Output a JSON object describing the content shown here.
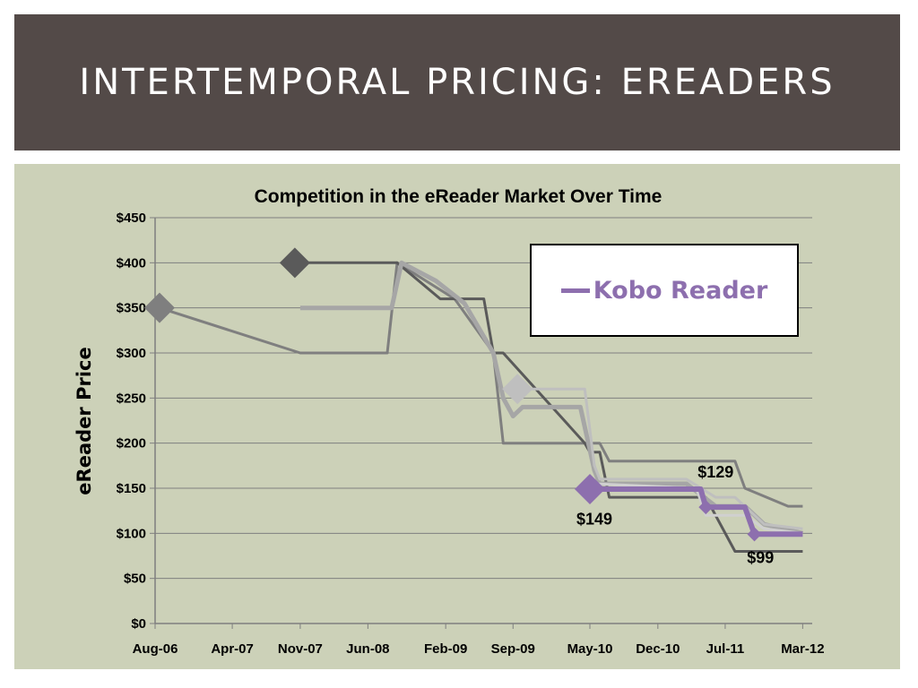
{
  "slide": {
    "title": "INTERTEMPORAL PRICING: EREADERS"
  },
  "chart_data": {
    "type": "line",
    "title": "Competition in the eReader Market Over Time",
    "xlabel": "",
    "ylabel": "eReader Price",
    "ylim": [
      0,
      450
    ],
    "yticks": [
      0,
      50,
      100,
      150,
      200,
      250,
      300,
      350,
      400,
      450
    ],
    "ytick_labels": [
      "$0",
      "$50",
      "$100",
      "$150",
      "$200",
      "$250",
      "$300",
      "$350",
      "$400",
      "$450"
    ],
    "xlim": [
      "2006-08-01",
      "2012-03-31"
    ],
    "xticks": [
      "2006-08-01",
      "2007-04-01",
      "2007-11-01",
      "2008-06-01",
      "2009-02-01",
      "2009-09-01",
      "2010-05-01",
      "2010-12-01",
      "2011-07-01",
      "2012-03-01"
    ],
    "xtick_labels": [
      "Aug-06",
      "Apr-07",
      "Nov-07",
      "Jun-08",
      "Feb-09",
      "Sep-09",
      "May-10",
      "Dec-10",
      "Jul-11",
      "Mar-12"
    ],
    "grid": true,
    "legend": {
      "placement": "upper-right",
      "entries": [
        "Kobo Reader"
      ]
    },
    "legend_color": "#8d6fae",
    "annotations": [
      {
        "text": "$149",
        "x": "2010-05-15",
        "y": 110
      },
      {
        "text": "$129",
        "x": "2011-06-01",
        "y": 162
      },
      {
        "text": "$99",
        "x": "2011-10-20",
        "y": 67
      }
    ],
    "series": [
      {
        "color": "#7f7f7f",
        "stroke_width": 3,
        "marker": "diamond",
        "marker_at": 0,
        "points": [
          [
            "2006-08-15",
            350
          ],
          [
            "2007-11-01",
            300
          ],
          [
            "2008-08-01",
            300
          ],
          [
            "2008-09-01",
            400
          ],
          [
            "2009-03-01",
            360
          ],
          [
            "2009-07-01",
            300
          ],
          [
            "2009-08-01",
            200
          ],
          [
            "2010-05-01",
            200
          ],
          [
            "2010-06-01",
            200
          ],
          [
            "2010-07-01",
            180
          ],
          [
            "2011-08-01",
            180
          ],
          [
            "2011-09-01",
            150
          ],
          [
            "2012-01-15",
            130
          ],
          [
            "2012-03-01",
            130
          ]
        ]
      },
      {
        "color": "#5a5a5a",
        "stroke_width": 3,
        "marker": "diamond",
        "marker_at": 0,
        "points": [
          [
            "2007-10-15",
            400
          ],
          [
            "2008-09-01",
            400
          ],
          [
            "2009-01-15",
            360
          ],
          [
            "2009-06-01",
            360
          ],
          [
            "2009-07-01",
            300
          ],
          [
            "2009-08-01",
            300
          ],
          [
            "2010-04-15",
            200
          ],
          [
            "2010-05-01",
            190
          ],
          [
            "2010-06-01",
            190
          ],
          [
            "2010-07-01",
            140
          ],
          [
            "2011-05-01",
            140
          ],
          [
            "2011-08-01",
            80
          ],
          [
            "2012-03-01",
            80
          ]
        ]
      },
      {
        "color": "#a6a6a6",
        "stroke_width": 5,
        "marker": "none",
        "marker_at": -1,
        "points": [
          [
            "2007-11-01",
            350
          ],
          [
            "2008-08-15",
            350
          ],
          [
            "2008-09-15",
            400
          ],
          [
            "2009-01-01",
            380
          ],
          [
            "2009-04-01",
            355
          ],
          [
            "2009-07-01",
            300
          ],
          [
            "2009-08-01",
            250
          ],
          [
            "2009-09-01",
            230
          ],
          [
            "2009-10-01",
            240
          ],
          [
            "2010-04-01",
            240
          ],
          [
            "2010-05-15",
            170
          ],
          [
            "2010-06-01",
            155
          ],
          [
            "2011-03-01",
            155
          ],
          [
            "2011-06-01",
            130
          ],
          [
            "2011-09-01",
            130
          ],
          [
            "2011-11-01",
            110
          ],
          [
            "2012-03-01",
            100
          ]
        ]
      },
      {
        "color": "#bfbfbf",
        "stroke_width": 3,
        "marker": "diamond",
        "marker_at": 0,
        "points": [
          [
            "2009-09-15",
            260
          ],
          [
            "2010-04-15",
            260
          ],
          [
            "2010-05-15",
            175
          ],
          [
            "2010-06-01",
            160
          ],
          [
            "2011-03-01",
            160
          ],
          [
            "2011-06-01",
            140
          ],
          [
            "2011-08-01",
            140
          ],
          [
            "2011-11-01",
            110
          ],
          [
            "2012-03-01",
            105
          ]
        ]
      },
      {
        "color": "#d0d0d0",
        "stroke_width": 3,
        "marker": "none",
        "marker_at": -1,
        "points": [
          [
            "2010-05-15",
            155
          ],
          [
            "2011-04-01",
            150
          ],
          [
            "2011-05-01",
            120
          ],
          [
            "2011-09-01",
            120
          ],
          [
            "2011-11-01",
            105
          ],
          [
            "2012-03-01",
            100
          ]
        ]
      },
      {
        "name": "Kobo Reader",
        "color": "#8d6fae",
        "stroke_width": 6,
        "marker": "diamond",
        "marker_at": 0,
        "points": [
          [
            "2010-05-01",
            149
          ],
          [
            "2011-04-15",
            149
          ],
          [
            "2011-05-01",
            129
          ],
          [
            "2011-09-01",
            129
          ],
          [
            "2011-10-01",
            99
          ],
          [
            "2012-03-01",
            99
          ]
        ],
        "extra_markers": [
          [
            "2011-05-01",
            129
          ],
          [
            "2011-10-01",
            99
          ]
        ]
      }
    ]
  }
}
